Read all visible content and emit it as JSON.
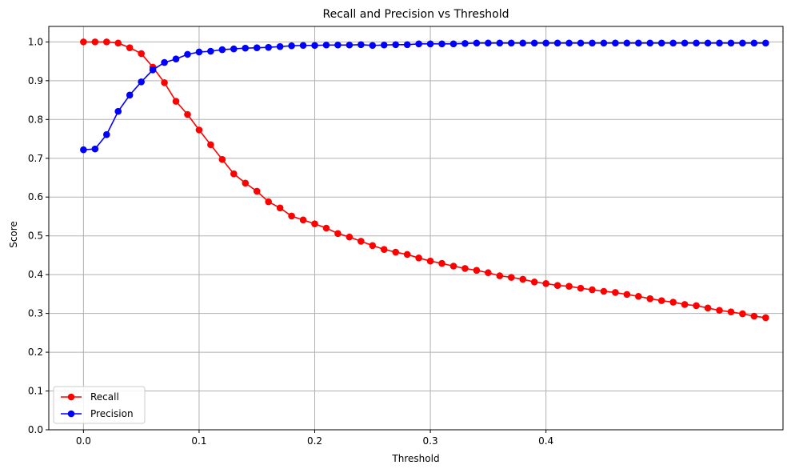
{
  "chart_data": {
    "type": "line",
    "title": "Recall and Precision vs Threshold",
    "xlabel": "Threshold",
    "ylabel": "Score",
    "xlim": [
      -0.03,
      0.605
    ],
    "ylim": [
      0.0,
      1.04
    ],
    "xticks": [
      0.0,
      0.1,
      0.2,
      0.3,
      0.4
    ],
    "xtick_labels": [
      "0.0",
      "0.1",
      "0.2",
      "0.3",
      "0.4"
    ],
    "yticks": [
      0.0,
      0.1,
      0.2,
      0.3,
      0.4,
      0.5,
      0.6,
      0.7,
      0.8,
      0.9,
      1.0
    ],
    "ytick_labels": [
      "0.0",
      "0.1",
      "0.2",
      "0.3",
      "0.4",
      "0.5",
      "0.6",
      "0.7",
      "0.8",
      "0.9",
      "1.0"
    ],
    "grid": true,
    "legend_position": "lower-left",
    "x": [
      0.0,
      0.01,
      0.02,
      0.03,
      0.04,
      0.05,
      0.06,
      0.07,
      0.08,
      0.09,
      0.1,
      0.11,
      0.12,
      0.13,
      0.14,
      0.15,
      0.16,
      0.17,
      0.18,
      0.19,
      0.2,
      0.21,
      0.22,
      0.23,
      0.24,
      0.25,
      0.26,
      0.27,
      0.28,
      0.29,
      0.3,
      0.31,
      0.32,
      0.33,
      0.34,
      0.35,
      0.36,
      0.37,
      0.38,
      0.39,
      0.4,
      0.41,
      0.42,
      0.43,
      0.44,
      0.45,
      0.46,
      0.47,
      0.48,
      0.49,
      0.5,
      0.51,
      0.52,
      0.53,
      0.54,
      0.55,
      0.56,
      0.57,
      0.58,
      0.59
    ],
    "series": [
      {
        "name": "Recall",
        "color": "#ff0000",
        "values": [
          1.0,
          1.0,
          1.0,
          0.997,
          0.985,
          0.97,
          0.935,
          0.895,
          0.847,
          0.813,
          0.773,
          0.735,
          0.697,
          0.66,
          0.636,
          0.615,
          0.588,
          0.572,
          0.551,
          0.541,
          0.531,
          0.52,
          0.506,
          0.497,
          0.486,
          0.475,
          0.465,
          0.458,
          0.452,
          0.443,
          0.435,
          0.429,
          0.422,
          0.416,
          0.411,
          0.405,
          0.397,
          0.393,
          0.388,
          0.381,
          0.377,
          0.372,
          0.37,
          0.365,
          0.361,
          0.357,
          0.354,
          0.349,
          0.344,
          0.338,
          0.333,
          0.329,
          0.323,
          0.32,
          0.314,
          0.308,
          0.304,
          0.299,
          0.293,
          0.289
        ]
      },
      {
        "name": "Precision",
        "color": "#0000ff",
        "values": [
          0.722,
          0.724,
          0.761,
          0.821,
          0.863,
          0.897,
          0.928,
          0.947,
          0.956,
          0.968,
          0.974,
          0.976,
          0.98,
          0.982,
          0.984,
          0.985,
          0.986,
          0.988,
          0.99,
          0.991,
          0.991,
          0.992,
          0.992,
          0.992,
          0.993,
          0.991,
          0.992,
          0.993,
          0.993,
          0.995,
          0.995,
          0.995,
          0.995,
          0.996,
          0.997,
          0.997,
          0.997,
          0.997,
          0.997,
          0.997,
          0.997,
          0.997,
          0.997,
          0.997,
          0.997,
          0.997,
          0.997,
          0.997,
          0.997,
          0.997,
          0.997,
          0.997,
          0.997,
          0.997,
          0.997,
          0.997,
          0.997,
          0.997,
          0.997,
          0.997
        ]
      }
    ]
  }
}
